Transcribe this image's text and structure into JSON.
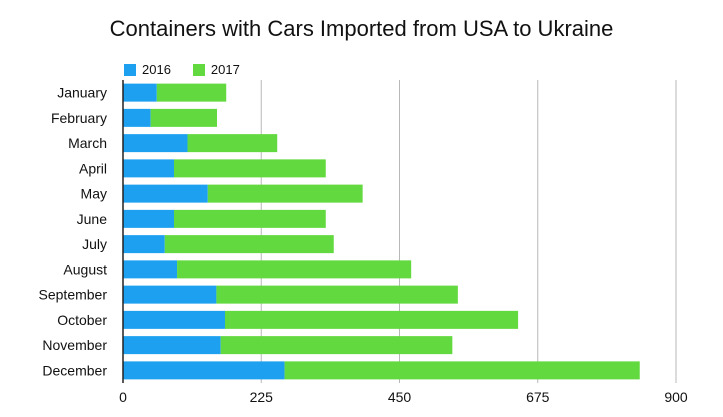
{
  "chart_data": {
    "type": "bar",
    "orientation": "horizontal",
    "stacked": true,
    "title": "Containers with Cars Imported from USA to Ukraine",
    "categories": [
      "January",
      "February",
      "March",
      "April",
      "May",
      "June",
      "July",
      "August",
      "September",
      "October",
      "November",
      "December"
    ],
    "series": [
      {
        "name": "2016",
        "color": "#1ea0f0",
        "values": [
          55,
          45,
          105,
          83,
          138,
          83,
          68,
          88,
          152,
          166,
          159,
          263
        ]
      },
      {
        "name": "2017",
        "color": "#62d93f",
        "values": [
          113,
          108,
          146,
          247,
          252,
          247,
          275,
          381,
          393,
          477,
          377,
          578
        ]
      }
    ],
    "x_ticks": [
      0,
      225,
      450,
      675,
      900
    ],
    "xlim": [
      0,
      900
    ],
    "grid": true,
    "legend_position": "top-left"
  }
}
